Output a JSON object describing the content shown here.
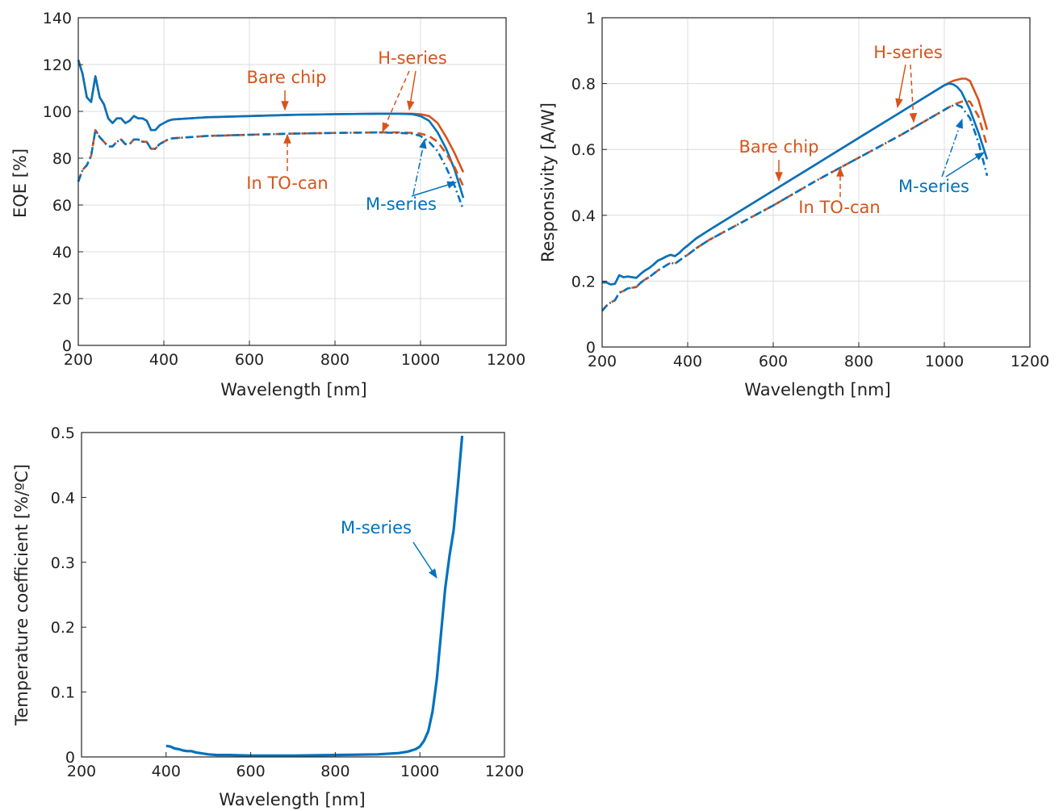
{
  "colors": {
    "h_series": "#D95319",
    "m_series": "#0072BD",
    "grid": "#dcdcdc",
    "axis": "#262626"
  },
  "chart_data": [
    {
      "type": "line",
      "xlabel": "Wavelength [nm]",
      "ylabel": "EQE [%]",
      "xlim": [
        200,
        1200
      ],
      "ylim": [
        0,
        140
      ],
      "xticks": [
        200,
        400,
        600,
        800,
        1000,
        1200
      ],
      "yticks": [
        0,
        20,
        40,
        60,
        80,
        100,
        120,
        140
      ],
      "grid": true,
      "series": [
        {
          "group": "Bare chip",
          "variant": "H-series",
          "color": "#D95319",
          "style": "solid",
          "x": [
            200,
            210,
            220,
            230,
            240,
            250,
            260,
            270,
            280,
            290,
            300,
            310,
            320,
            330,
            340,
            350,
            360,
            370,
            380,
            390,
            400,
            410,
            420,
            500,
            600,
            700,
            800,
            900,
            950,
            980,
            1000,
            1020,
            1040,
            1060,
            1080,
            1100
          ],
          "y": [
            122,
            116,
            106,
            104,
            115,
            106,
            103,
            97,
            95,
            97,
            97,
            95,
            96,
            98,
            97,
            97,
            96,
            92,
            92,
            94,
            95,
            96,
            96.5,
            97.5,
            98,
            98.5,
            98.8,
            99,
            99,
            99,
            98.8,
            98,
            95,
            89,
            82,
            74
          ]
        },
        {
          "group": "Bare chip",
          "variant": "M-series",
          "color": "#0072BD",
          "style": "solid",
          "x": [
            200,
            210,
            220,
            230,
            240,
            250,
            260,
            270,
            280,
            290,
            300,
            310,
            320,
            330,
            340,
            350,
            360,
            370,
            380,
            390,
            400,
            410,
            420,
            500,
            600,
            700,
            800,
            900,
            950,
            980,
            1000,
            1020,
            1040,
            1060,
            1080,
            1100
          ],
          "y": [
            122,
            116,
            106,
            104,
            115,
            106,
            103,
            97,
            95,
            97,
            97,
            95,
            96,
            98,
            97,
            97,
            96,
            92,
            92,
            94,
            95,
            96,
            96.5,
            97.5,
            98,
            98.5,
            98.8,
            99,
            99,
            98.8,
            98,
            96,
            91,
            84,
            75,
            63
          ]
        },
        {
          "group": "In TO-can",
          "variant": "H-series",
          "color": "#D95319",
          "style": "dashed",
          "x": [
            200,
            210,
            220,
            230,
            240,
            250,
            260,
            270,
            280,
            290,
            300,
            310,
            320,
            330,
            340,
            350,
            360,
            370,
            380,
            390,
            400,
            410,
            420,
            500,
            600,
            700,
            800,
            900,
            950,
            980,
            1000,
            1020,
            1040,
            1060,
            1080,
            1100
          ],
          "y": [
            70,
            75,
            77,
            81,
            92,
            89,
            87,
            85,
            85,
            87,
            88,
            86,
            86,
            88,
            88,
            87,
            87,
            84,
            84,
            86,
            87,
            88,
            88.5,
            89.5,
            90,
            90.5,
            90.8,
            91,
            91,
            90.8,
            90.5,
            89.5,
            87,
            82,
            76,
            68
          ]
        },
        {
          "group": "In TO-can",
          "variant": "M-series",
          "color": "#0072BD",
          "style": "dashdot",
          "x": [
            200,
            210,
            220,
            230,
            240,
            250,
            260,
            270,
            280,
            290,
            300,
            310,
            320,
            330,
            340,
            350,
            360,
            370,
            380,
            390,
            400,
            410,
            420,
            500,
            600,
            700,
            800,
            900,
            950,
            980,
            1000,
            1020,
            1040,
            1060,
            1080,
            1100
          ],
          "y": [
            70,
            75,
            77,
            81,
            92,
            89,
            87,
            85,
            85,
            87,
            88,
            86,
            86,
            88,
            88,
            87,
            87,
            84,
            84,
            86,
            87,
            88,
            88.5,
            89.5,
            90,
            90.5,
            90.8,
            91,
            90.8,
            90.5,
            89.5,
            87,
            83,
            76,
            68,
            58
          ]
        }
      ],
      "annotations": [
        {
          "text": "Bare chip",
          "color": "#D95319"
        },
        {
          "text": "H-series",
          "color": "#D95319"
        },
        {
          "text": "In TO-can",
          "color": "#D95319"
        },
        {
          "text": "M-series",
          "color": "#0072BD"
        }
      ]
    },
    {
      "type": "line",
      "xlabel": "Wavelength [nm]",
      "ylabel": "Responsivity [A/W]",
      "xlim": [
        200,
        1200
      ],
      "ylim": [
        0,
        1
      ],
      "xticks": [
        200,
        400,
        600,
        800,
        1000,
        1200
      ],
      "yticks": [
        0,
        0.2,
        0.4,
        0.6,
        0.8,
        1
      ],
      "ytick_labels": [
        "0",
        "0.2",
        "0.4",
        "0.6",
        "0.8",
        "1"
      ],
      "grid": true,
      "series": [
        {
          "group": "Bare chip",
          "variant": "H-series",
          "color": "#D95319",
          "style": "solid",
          "x": [
            200,
            210,
            220,
            230,
            240,
            250,
            260,
            270,
            280,
            290,
            300,
            310,
            320,
            330,
            340,
            350,
            360,
            370,
            380,
            390,
            400,
            420,
            450,
            500,
            600,
            700,
            800,
            900,
            1000,
            1020,
            1040,
            1050,
            1060,
            1080,
            1100
          ],
          "y": [
            0.196,
            0.196,
            0.19,
            0.192,
            0.218,
            0.212,
            0.214,
            0.212,
            0.21,
            0.222,
            0.232,
            0.24,
            0.25,
            0.262,
            0.268,
            0.275,
            0.28,
            0.276,
            0.285,
            0.298,
            0.308,
            0.33,
            0.355,
            0.395,
            0.475,
            0.555,
            0.635,
            0.715,
            0.795,
            0.808,
            0.815,
            0.815,
            0.808,
            0.75,
            0.66
          ]
        },
        {
          "group": "Bare chip",
          "variant": "M-series",
          "color": "#0072BD",
          "style": "solid",
          "x": [
            200,
            210,
            220,
            230,
            240,
            250,
            260,
            270,
            280,
            290,
            300,
            310,
            320,
            330,
            340,
            350,
            360,
            370,
            380,
            390,
            400,
            420,
            450,
            500,
            600,
            700,
            800,
            900,
            1000,
            1010,
            1020,
            1030,
            1040,
            1060,
            1080,
            1100
          ],
          "y": [
            0.196,
            0.196,
            0.19,
            0.192,
            0.218,
            0.212,
            0.214,
            0.212,
            0.21,
            0.222,
            0.232,
            0.24,
            0.25,
            0.262,
            0.268,
            0.275,
            0.28,
            0.276,
            0.285,
            0.298,
            0.308,
            0.33,
            0.355,
            0.395,
            0.475,
            0.555,
            0.635,
            0.715,
            0.795,
            0.8,
            0.798,
            0.79,
            0.775,
            0.72,
            0.65,
            0.57
          ]
        },
        {
          "group": "In TO-can",
          "variant": "H-series",
          "color": "#D95319",
          "style": "dashed",
          "x": [
            200,
            210,
            220,
            230,
            240,
            250,
            260,
            270,
            280,
            290,
            300,
            310,
            320,
            330,
            340,
            350,
            360,
            370,
            380,
            390,
            400,
            420,
            450,
            500,
            600,
            700,
            800,
            900,
            1000,
            1020,
            1040,
            1050,
            1060,
            1080,
            1100
          ],
          "y": [
            0.11,
            0.125,
            0.135,
            0.142,
            0.165,
            0.17,
            0.178,
            0.18,
            0.182,
            0.195,
            0.205,
            0.212,
            0.222,
            0.232,
            0.24,
            0.248,
            0.256,
            0.253,
            0.262,
            0.272,
            0.28,
            0.3,
            0.325,
            0.36,
            0.43,
            0.505,
            0.575,
            0.645,
            0.72,
            0.735,
            0.745,
            0.748,
            0.745,
            0.7,
            0.61
          ]
        },
        {
          "group": "In TO-can",
          "variant": "M-series",
          "color": "#0072BD",
          "style": "dashdot",
          "x": [
            200,
            210,
            220,
            230,
            240,
            250,
            260,
            270,
            280,
            290,
            300,
            310,
            320,
            330,
            340,
            350,
            360,
            370,
            380,
            390,
            400,
            420,
            450,
            500,
            600,
            700,
            800,
            900,
            1000,
            1010,
            1020,
            1030,
            1040,
            1060,
            1080,
            1100
          ],
          "y": [
            0.11,
            0.125,
            0.135,
            0.142,
            0.165,
            0.17,
            0.178,
            0.18,
            0.182,
            0.195,
            0.205,
            0.212,
            0.222,
            0.232,
            0.24,
            0.248,
            0.256,
            0.253,
            0.262,
            0.272,
            0.28,
            0.3,
            0.325,
            0.36,
            0.43,
            0.505,
            0.575,
            0.645,
            0.72,
            0.728,
            0.733,
            0.735,
            0.73,
            0.695,
            0.62,
            0.52
          ]
        }
      ],
      "annotations": [
        {
          "text": "H-series",
          "color": "#D95319"
        },
        {
          "text": "Bare chip",
          "color": "#D95319"
        },
        {
          "text": "In TO-can",
          "color": "#D95319"
        },
        {
          "text": "M-series",
          "color": "#0072BD"
        }
      ]
    },
    {
      "type": "line",
      "xlabel": "Wavelength [nm]",
      "ylabel": "Temperature coefficient [%/ºC]",
      "xlim": [
        200,
        1200
      ],
      "ylim": [
        0,
        0.5
      ],
      "xticks": [
        200,
        400,
        600,
        800,
        1000,
        1200
      ],
      "yticks": [
        0,
        0.1,
        0.2,
        0.3,
        0.4,
        0.5
      ],
      "ytick_labels": [
        "0",
        "0.1",
        "0.2",
        "0.3",
        "0.4",
        "0.5"
      ],
      "grid": false,
      "series": [
        {
          "variant": "M-series",
          "color": "#0072BD",
          "style": "solid",
          "x": [
            400,
            410,
            420,
            430,
            440,
            450,
            460,
            470,
            480,
            500,
            520,
            550,
            600,
            700,
            800,
            900,
            950,
            970,
            990,
            1000,
            1010,
            1020,
            1030,
            1040,
            1050,
            1060,
            1070,
            1080,
            1090,
            1100
          ],
          "y": [
            0.017,
            0.016,
            0.013,
            0.012,
            0.01,
            0.009,
            0.009,
            0.007,
            0.006,
            0.004,
            0.003,
            0.003,
            0.002,
            0.002,
            0.003,
            0.004,
            0.006,
            0.008,
            0.012,
            0.016,
            0.025,
            0.04,
            0.07,
            0.12,
            0.19,
            0.26,
            0.31,
            0.35,
            0.42,
            0.495
          ]
        }
      ],
      "annotations": [
        {
          "text": "M-series",
          "color": "#0072BD"
        }
      ]
    }
  ]
}
